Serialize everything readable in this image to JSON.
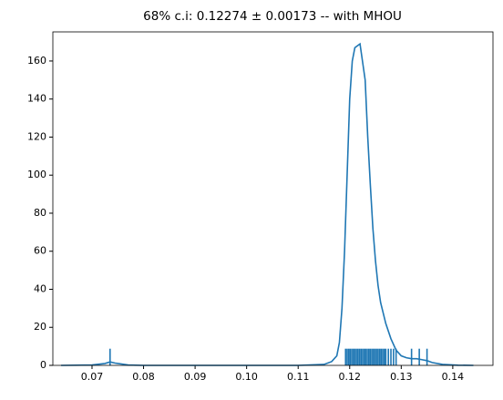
{
  "chart_data": {
    "type": "line",
    "title": "68% c.i: 0.12274  ± 0.00173  -- with MHOU",
    "series": [
      {
        "color": "#1f77b4",
        "x": [
          0.064,
          0.07,
          0.0725,
          0.0735,
          0.0745,
          0.077,
          0.08,
          0.11,
          0.115,
          0.1165,
          0.1175,
          0.118,
          0.1185,
          0.119,
          0.1195,
          0.12,
          0.1205,
          0.121,
          0.122,
          0.123,
          0.1235,
          0.124,
          0.1245,
          0.125,
          0.1255,
          0.126,
          0.127,
          0.128,
          0.129,
          0.13,
          0.131,
          0.132,
          0.133,
          0.134,
          0.135,
          0.136,
          0.138,
          0.141,
          0.144
        ],
        "values": [
          0,
          0.2,
          1,
          1.8,
          1.2,
          0.2,
          0,
          0,
          0.5,
          2,
          5,
          12,
          30,
          60,
          100,
          140,
          160,
          167,
          169,
          150,
          120,
          95,
          72,
          55,
          42,
          33,
          22,
          14,
          8,
          5,
          4,
          3.5,
          3.5,
          3,
          2.5,
          1.5,
          0.5,
          0.1,
          0
        ]
      }
    ],
    "rug": [
      0.0735,
      0.1192,
      0.1195,
      0.1198,
      0.1201,
      0.1204,
      0.1207,
      0.121,
      0.1213,
      0.1216,
      0.1219,
      0.1222,
      0.1225,
      0.1228,
      0.1231,
      0.1234,
      0.1237,
      0.124,
      0.1243,
      0.1246,
      0.1249,
      0.1252,
      0.1255,
      0.1258,
      0.1261,
      0.1264,
      0.1267,
      0.127,
      0.1275,
      0.128,
      0.1285,
      0.129,
      0.132,
      0.1335,
      0.135
    ],
    "xlim": [
      0.0624,
      0.1478
    ],
    "ylim": [
      0,
      175.3
    ],
    "xticks": [
      0.07,
      0.08,
      0.09,
      {
        "value": 0.1,
        "label": "0.10"
      },
      0.11,
      0.12,
      0.13,
      0.14
    ],
    "yticks": [
      0,
      20,
      40,
      60,
      80,
      100,
      120,
      140,
      160
    ]
  }
}
